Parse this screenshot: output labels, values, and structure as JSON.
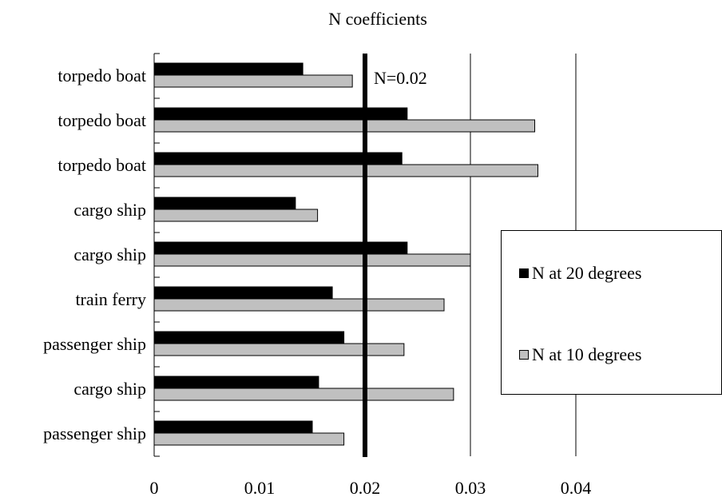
{
  "chart_data": {
    "type": "bar",
    "orientation": "horizontal",
    "title": "N coefficients",
    "xlabel": "",
    "ylabel": "",
    "xlim": [
      0,
      0.04
    ],
    "x_ticks": [
      "0",
      "0.01",
      "0.02",
      "0.03",
      "0.04"
    ],
    "grid": "vertical gridlines at 0.03 and 0.04",
    "legend_position": "right",
    "categories": [
      "torpedo boat",
      "torpedo boat",
      "torpedo boat",
      "cargo ship",
      "cargo ship",
      "train ferry",
      "passenger ship",
      "cargo ship",
      "passenger ship"
    ],
    "series": [
      {
        "name": "N at 20 degrees",
        "color": "#000000",
        "values": [
          0.0141,
          0.024,
          0.0235,
          0.0134,
          0.024,
          0.0169,
          0.018,
          0.0156,
          0.015
        ]
      },
      {
        "name": "N at 10 degrees",
        "color": "#c0c0c0",
        "values": [
          0.0188,
          0.0361,
          0.0364,
          0.0155,
          0.03,
          0.0275,
          0.0237,
          0.0284,
          0.018
        ]
      }
    ],
    "reference_line": {
      "value": 0.02,
      "label": "N=0.02"
    }
  },
  "legend": {
    "item_20": "N at 20 degrees",
    "item_10": "N at 10 degrees",
    "color_20": "#000000",
    "color_10": "#c0c0c0"
  }
}
